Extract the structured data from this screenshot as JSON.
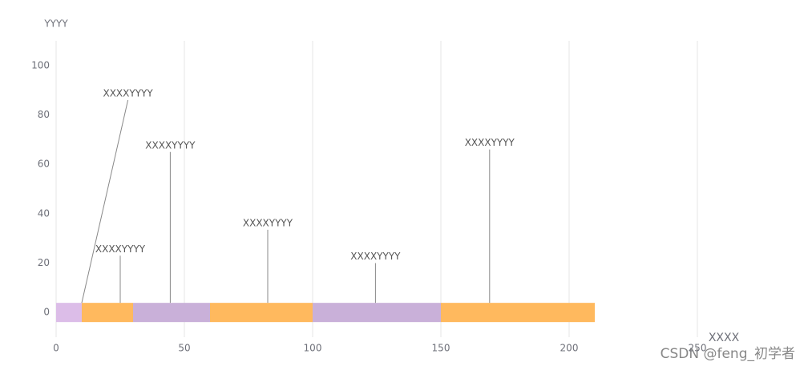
{
  "chart_data": {
    "type": "segments",
    "y_axis_title": "YYYY",
    "x_axis_title": "XXXX",
    "xlim": [
      0,
      290
    ],
    "xticks": [
      0,
      50,
      100,
      150,
      200,
      250
    ],
    "ylim": [
      -10,
      110
    ],
    "yticks": [
      0,
      20,
      40,
      60,
      80,
      100
    ],
    "grid": true,
    "segments": [
      {
        "start": 0,
        "end": 10,
        "value": 0,
        "color": "#dcbde8"
      },
      {
        "start": 10,
        "end": 30,
        "value": 0,
        "color": "#ffb95e"
      },
      {
        "start": 30,
        "end": 60,
        "value": 0,
        "color": "#c9b0d9"
      },
      {
        "start": 60,
        "end": 100,
        "value": 0,
        "color": "#ffb95e"
      },
      {
        "start": 100,
        "end": 150,
        "value": 0,
        "color": "#c9b0d9"
      },
      {
        "start": 150,
        "end": 210,
        "value": 0,
        "color": "#ffb95e"
      }
    ],
    "annotations": [
      {
        "label": "XXXXYYYY",
        "x": 10,
        "label_x": 28,
        "y": 86
      },
      {
        "label": "XXXXYYYY",
        "x": 25,
        "y": 23
      },
      {
        "label": "XXXXYYYY",
        "x": 44.5,
        "y": 65
      },
      {
        "label": "XXXXYYYY",
        "x": 82.5,
        "y": 33.5
      },
      {
        "label": "XXXXYYYY",
        "x": 124.5,
        "y": 20
      },
      {
        "label": "XXXXYYYY",
        "x": 169,
        "y": 66
      }
    ],
    "watermark": "CSDN @feng_初学者"
  }
}
